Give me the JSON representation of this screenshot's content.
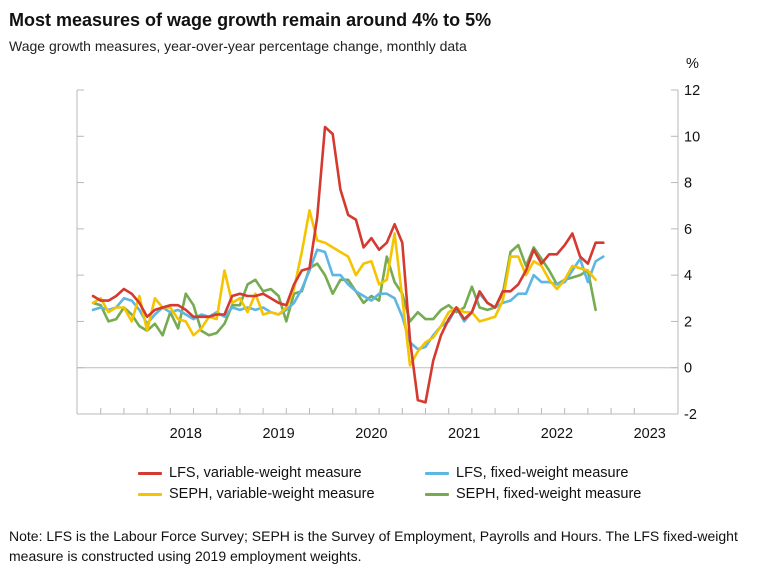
{
  "chart_data": {
    "type": "line",
    "title": "Most measures of wage growth remain around 4% to 5%",
    "subtitle": "Wage growth measures, year-over-year percentage change, monthly data",
    "y_unit": "%",
    "ylim": [
      -2,
      12
    ],
    "y_ticks": [
      "12",
      "10",
      "8",
      "6",
      "4",
      "2",
      "0",
      "-2"
    ],
    "x_ticks": [
      "2018",
      "2019",
      "2020",
      "2021",
      "2022",
      "2023"
    ],
    "xlim": [
      "2017-07",
      "2023-06"
    ],
    "grid": false,
    "zero_line": true,
    "legend_position": "bottom",
    "note": "Note: LFS is the Labour Force Survey; SEPH is the Survey of Employment, Payrolls and Hours. The LFS fixed-weight measure is constructed using 2019 employment weights.",
    "series": [
      {
        "name": "LFS, variable-weight measure",
        "color": "#d43a2f",
        "start": "2017-07",
        "values": [
          3.1,
          2.9,
          2.9,
          3.1,
          3.4,
          3.2,
          2.8,
          2.2,
          2.5,
          2.6,
          2.7,
          2.7,
          2.5,
          2.2,
          2.2,
          2.2,
          2.3,
          2.3,
          3.1,
          3.2,
          3.1,
          3.1,
          3.2,
          3.0,
          2.8,
          2.7,
          3.6,
          4.2,
          4.3,
          6.5,
          10.4,
          10.1,
          7.7,
          6.6,
          6.4,
          5.2,
          5.6,
          5.1,
          5.4,
          6.2,
          5.4,
          1.2,
          -1.4,
          -1.5,
          0.3,
          1.4,
          2.1,
          2.6,
          2.1,
          2.4,
          3.3,
          2.8,
          2.6,
          3.3,
          3.3,
          3.6,
          4.2,
          5.1,
          4.5,
          4.9,
          4.9,
          5.3,
          5.8,
          4.8,
          4.5,
          5.4,
          5.4
        ]
      },
      {
        "name": "LFS, fixed-weight measure",
        "color": "#5eb6e2",
        "start": "2017-07",
        "values": [
          2.5,
          2.6,
          2.5,
          2.6,
          3.0,
          2.9,
          2.5,
          1.9,
          2.3,
          2.6,
          2.4,
          2.5,
          2.3,
          2.1,
          2.3,
          2.2,
          2.4,
          2.2,
          2.6,
          2.5,
          2.6,
          2.5,
          2.6,
          2.4,
          2.3,
          2.5,
          2.8,
          3.4,
          4.2,
          5.1,
          5.0,
          4.0,
          4.0,
          3.6,
          3.3,
          3.1,
          2.9,
          3.2,
          3.2,
          3.0,
          2.2,
          1.1,
          0.8,
          0.9,
          1.4,
          1.8,
          2.0,
          2.6,
          2.0,
          2.4,
          3.2,
          2.8,
          2.6,
          2.8,
          2.9,
          3.2,
          3.2,
          4.0,
          3.7,
          3.7,
          3.6,
          3.7,
          4.2,
          4.7,
          3.7,
          4.6,
          4.8
        ]
      },
      {
        "name": "SEPH, variable-weight measure",
        "color": "#f5c400",
        "start": "2017-07",
        "values": [
          2.8,
          3.0,
          2.4,
          2.6,
          2.6,
          2.0,
          3.1,
          1.6,
          3.0,
          2.6,
          2.6,
          2.1,
          2.0,
          1.4,
          1.7,
          2.2,
          2.1,
          4.2,
          2.8,
          3.0,
          2.4,
          3.2,
          2.3,
          2.4,
          2.3,
          2.6,
          3.4,
          5.0,
          6.8,
          5.5,
          5.4,
          5.2,
          5.0,
          4.8,
          4.0,
          4.5,
          4.6,
          3.6,
          3.8,
          5.8,
          3.0,
          0.1,
          0.7,
          1.1,
          1.3,
          1.8,
          2.4,
          2.6,
          2.4,
          2.4,
          2.0,
          2.1,
          2.2,
          2.9,
          4.8,
          4.8,
          4.0,
          4.6,
          4.4,
          3.8,
          3.4,
          3.8,
          4.4,
          4.3,
          4.2,
          3.8
        ]
      },
      {
        "name": "SEPH, fixed-weight measure",
        "color": "#76ab52",
        "start": "2017-07",
        "values": [
          2.8,
          2.7,
          2.0,
          2.1,
          2.6,
          2.3,
          1.8,
          1.6,
          1.9,
          1.4,
          2.4,
          1.7,
          3.2,
          2.7,
          1.6,
          1.4,
          1.5,
          1.9,
          2.7,
          2.7,
          3.6,
          3.8,
          3.3,
          3.4,
          3.1,
          2.0,
          3.2,
          3.3,
          4.3,
          4.5,
          4.0,
          3.2,
          3.8,
          3.8,
          3.3,
          2.8,
          3.1,
          2.9,
          4.8,
          3.7,
          3.2,
          2.0,
          2.4,
          2.1,
          2.1,
          2.5,
          2.7,
          2.4,
          2.6,
          3.5,
          2.6,
          2.5,
          2.6,
          3.2,
          5.0,
          5.3,
          4.4,
          5.2,
          4.7,
          4.2,
          3.6,
          3.8,
          3.9,
          4.0,
          4.2,
          2.5
        ]
      }
    ]
  }
}
